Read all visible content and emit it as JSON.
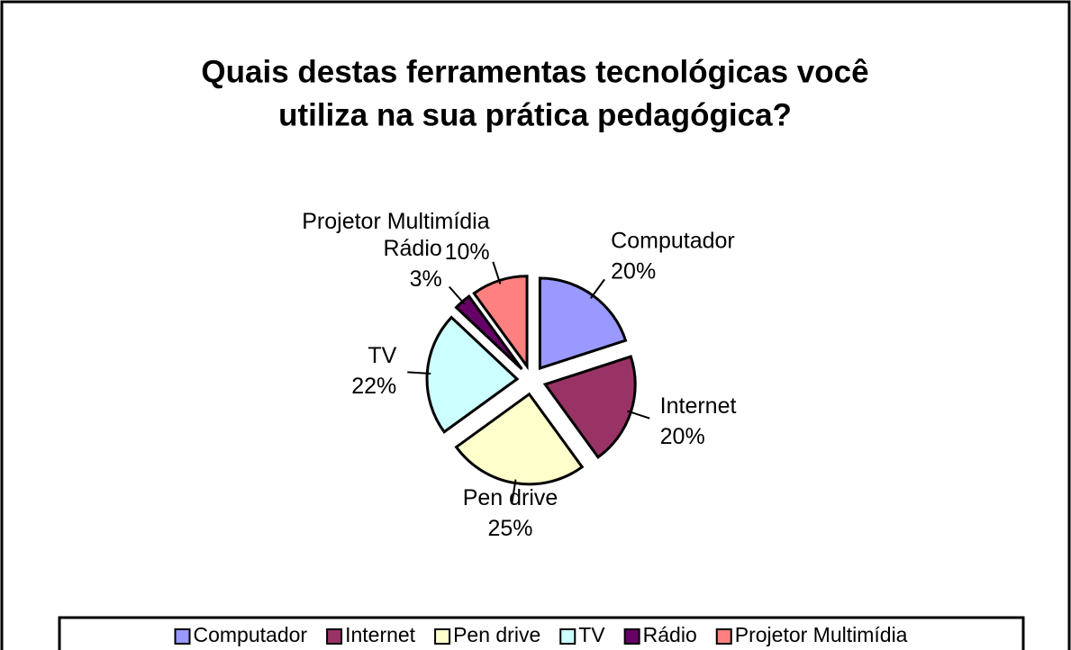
{
  "chart_data": {
    "type": "pie",
    "title": [
      "Quais destas ferramentas tecnológicas você",
      "utiliza na sua prática pedagógica?"
    ],
    "categories": [
      "Computador",
      "Internet",
      "Pen drive",
      "TV",
      "Rádio",
      "Projetor Multimídia"
    ],
    "values": [
      20,
      20,
      25,
      22,
      3,
      10
    ],
    "value_labels": [
      "20%",
      "20%",
      "25%",
      "22%",
      "3%",
      "10%"
    ],
    "colors": [
      "#9999ff",
      "#993366",
      "#ffffcc",
      "#ccffff",
      "#660066",
      "#ff8080"
    ],
    "legend": "bottom"
  }
}
